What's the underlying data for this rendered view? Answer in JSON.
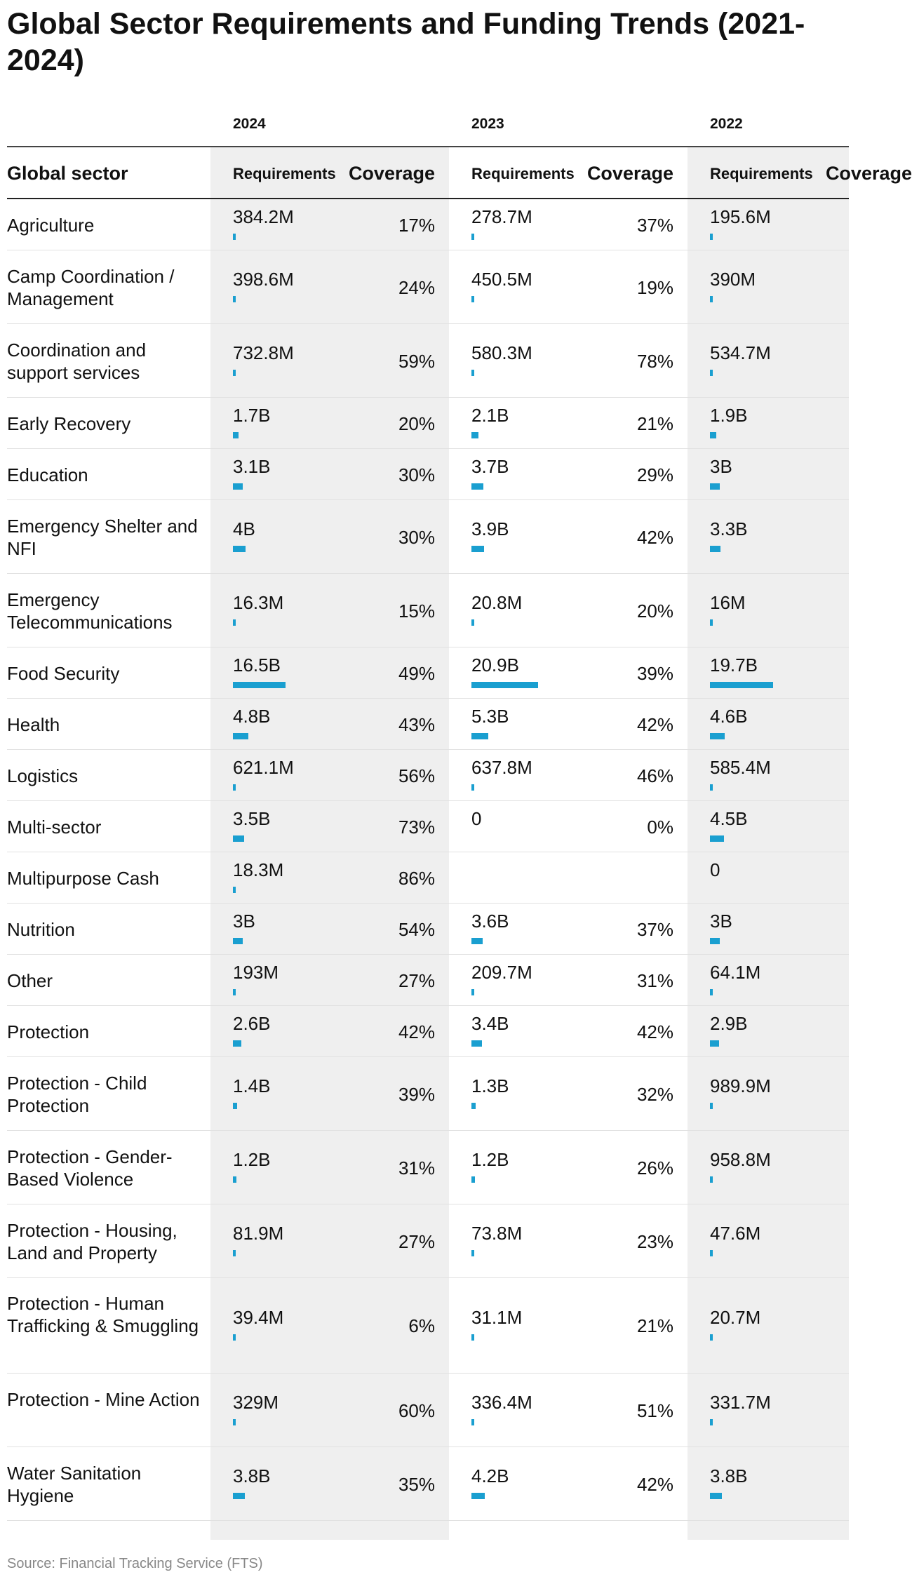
{
  "title": "Global Sector Requirements and Funding Trends (2021-2024)",
  "source": "Source: Financial Tracking Service (FTS)",
  "colors": {
    "bar": "#1a9fd0",
    "shade": "#efefef"
  },
  "header": {
    "sector": "Global sector",
    "requirements": "Requirements",
    "coverage": "Coverage",
    "years": [
      "2024",
      "2023",
      "2022"
    ]
  },
  "chart_data": {
    "type": "table",
    "title": "Global Sector Requirements and Funding Trends (2021-2024)",
    "columns": [
      "Global sector",
      "2024 Requirements",
      "2024 Coverage",
      "2023 Requirements",
      "2023 Coverage",
      "2022 Requirements",
      "2022 Coverage"
    ],
    "bar_unit": "USD",
    "bar_max": 20900000000,
    "rows": [
      {
        "sector": "Agriculture",
        "lines": 1,
        "years": [
          {
            "req": "384.2M",
            "value": 384200000,
            "cov": "17%"
          },
          {
            "req": "278.7M",
            "value": 278700000,
            "cov": "37%"
          },
          {
            "req": "195.6M",
            "value": 195600000,
            "cov": ""
          }
        ]
      },
      {
        "sector": "Camp Coordination / Management",
        "lines": 2,
        "years": [
          {
            "req": "398.6M",
            "value": 398600000,
            "cov": "24%"
          },
          {
            "req": "450.5M",
            "value": 450500000,
            "cov": "19%"
          },
          {
            "req": "390M",
            "value": 390000000,
            "cov": ""
          }
        ]
      },
      {
        "sector": "Coordination and support services",
        "lines": 2,
        "years": [
          {
            "req": "732.8M",
            "value": 732800000,
            "cov": "59%"
          },
          {
            "req": "580.3M",
            "value": 580300000,
            "cov": "78%"
          },
          {
            "req": "534.7M",
            "value": 534700000,
            "cov": ""
          }
        ]
      },
      {
        "sector": "Early Recovery",
        "lines": 1,
        "years": [
          {
            "req": "1.7B",
            "value": 1700000000,
            "cov": "20%"
          },
          {
            "req": "2.1B",
            "value": 2100000000,
            "cov": "21%"
          },
          {
            "req": "1.9B",
            "value": 1900000000,
            "cov": ""
          }
        ]
      },
      {
        "sector": "Education",
        "lines": 1,
        "years": [
          {
            "req": "3.1B",
            "value": 3100000000,
            "cov": "30%"
          },
          {
            "req": "3.7B",
            "value": 3700000000,
            "cov": "29%"
          },
          {
            "req": "3B",
            "value": 3000000000,
            "cov": ""
          }
        ]
      },
      {
        "sector": "Emergency Shelter and NFI",
        "lines": 2,
        "years": [
          {
            "req": "4B",
            "value": 4000000000,
            "cov": "30%"
          },
          {
            "req": "3.9B",
            "value": 3900000000,
            "cov": "42%"
          },
          {
            "req": "3.3B",
            "value": 3300000000,
            "cov": ""
          }
        ]
      },
      {
        "sector": "Emergency Telecommunications",
        "lines": 2,
        "years": [
          {
            "req": "16.3M",
            "value": 16300000,
            "cov": "15%"
          },
          {
            "req": "20.8M",
            "value": 20800000,
            "cov": "20%"
          },
          {
            "req": "16M",
            "value": 16000000,
            "cov": ""
          }
        ]
      },
      {
        "sector": "Food Security",
        "lines": 1,
        "years": [
          {
            "req": "16.5B",
            "value": 16500000000,
            "cov": "49%"
          },
          {
            "req": "20.9B",
            "value": 20900000000,
            "cov": "39%"
          },
          {
            "req": "19.7B",
            "value": 19700000000,
            "cov": ""
          }
        ]
      },
      {
        "sector": "Health",
        "lines": 1,
        "years": [
          {
            "req": "4.8B",
            "value": 4800000000,
            "cov": "43%"
          },
          {
            "req": "5.3B",
            "value": 5300000000,
            "cov": "42%"
          },
          {
            "req": "4.6B",
            "value": 4600000000,
            "cov": ""
          }
        ]
      },
      {
        "sector": "Logistics",
        "lines": 1,
        "years": [
          {
            "req": "621.1M",
            "value": 621100000,
            "cov": "56%"
          },
          {
            "req": "637.8M",
            "value": 637800000,
            "cov": "46%"
          },
          {
            "req": "585.4M",
            "value": 585400000,
            "cov": ""
          }
        ]
      },
      {
        "sector": "Multi-sector",
        "lines": 1,
        "years": [
          {
            "req": "3.5B",
            "value": 3500000000,
            "cov": "73%"
          },
          {
            "req": "0",
            "value": 0,
            "cov": "0%"
          },
          {
            "req": "4.5B",
            "value": 4500000000,
            "cov": ""
          }
        ]
      },
      {
        "sector": "Multipurpose Cash",
        "lines": 1,
        "years": [
          {
            "req": "18.3M",
            "value": 18300000,
            "cov": "86%"
          },
          {
            "req": "",
            "value": null,
            "cov": ""
          },
          {
            "req": "0",
            "value": 0,
            "cov": ""
          }
        ]
      },
      {
        "sector": "Nutrition",
        "lines": 1,
        "years": [
          {
            "req": "3B",
            "value": 3000000000,
            "cov": "54%"
          },
          {
            "req": "3.6B",
            "value": 3600000000,
            "cov": "37%"
          },
          {
            "req": "3B",
            "value": 3000000000,
            "cov": ""
          }
        ]
      },
      {
        "sector": "Other",
        "lines": 1,
        "years": [
          {
            "req": "193M",
            "value": 193000000,
            "cov": "27%"
          },
          {
            "req": "209.7M",
            "value": 209700000,
            "cov": "31%"
          },
          {
            "req": "64.1M",
            "value": 64100000,
            "cov": ""
          }
        ]
      },
      {
        "sector": "Protection",
        "lines": 1,
        "years": [
          {
            "req": "2.6B",
            "value": 2600000000,
            "cov": "42%"
          },
          {
            "req": "3.4B",
            "value": 3400000000,
            "cov": "42%"
          },
          {
            "req": "2.9B",
            "value": 2900000000,
            "cov": ""
          }
        ]
      },
      {
        "sector": "Protection - Child Protection",
        "lines": 2,
        "years": [
          {
            "req": "1.4B",
            "value": 1400000000,
            "cov": "39%"
          },
          {
            "req": "1.3B",
            "value": 1300000000,
            "cov": "32%"
          },
          {
            "req": "989.9M",
            "value": 989900000,
            "cov": ""
          }
        ]
      },
      {
        "sector": "Protection - Gender-Based Violence",
        "lines": 2,
        "years": [
          {
            "req": "1.2B",
            "value": 1200000000,
            "cov": "31%"
          },
          {
            "req": "1.2B",
            "value": 1200000000,
            "cov": "26%"
          },
          {
            "req": "958.8M",
            "value": 958800000,
            "cov": ""
          }
        ]
      },
      {
        "sector": "Protection - Housing, Land and Property",
        "lines": 2,
        "years": [
          {
            "req": "81.9M",
            "value": 81900000,
            "cov": "27%"
          },
          {
            "req": "73.8M",
            "value": 73800000,
            "cov": "23%"
          },
          {
            "req": "47.6M",
            "value": 47600000,
            "cov": ""
          }
        ]
      },
      {
        "sector": "Protection - Human Trafficking & Smuggling",
        "lines": 3,
        "years": [
          {
            "req": "39.4M",
            "value": 39400000,
            "cov": "6%"
          },
          {
            "req": "31.1M",
            "value": 31100000,
            "cov": "21%"
          },
          {
            "req": "20.7M",
            "value": 20700000,
            "cov": ""
          }
        ]
      },
      {
        "sector": "Protection - Mine Action",
        "lines": 2,
        "years": [
          {
            "req": "329M",
            "value": 329000000,
            "cov": "60%"
          },
          {
            "req": "336.4M",
            "value": 336400000,
            "cov": "51%"
          },
          {
            "req": "331.7M",
            "value": 331700000,
            "cov": ""
          }
        ]
      },
      {
        "sector": "Water Sanitation Hygiene",
        "lines": 2,
        "years": [
          {
            "req": "3.8B",
            "value": 3800000000,
            "cov": "35%"
          },
          {
            "req": "4.2B",
            "value": 4200000000,
            "cov": "42%"
          },
          {
            "req": "3.8B",
            "value": 3800000000,
            "cov": ""
          }
        ]
      }
    ]
  }
}
